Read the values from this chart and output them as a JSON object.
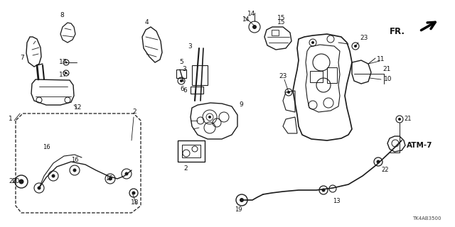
{
  "title": "TK4AB3500",
  "bg_color": "#ffffff",
  "line_color": "#1a1a1a",
  "label_color": "#111111",
  "fr_label": "FR.",
  "atm_label": "ATM-7",
  "figsize": [
    6.4,
    3.2
  ],
  "dpi": 100,
  "xlim": [
    0,
    640
  ],
  "ylim": [
    0,
    320
  ]
}
